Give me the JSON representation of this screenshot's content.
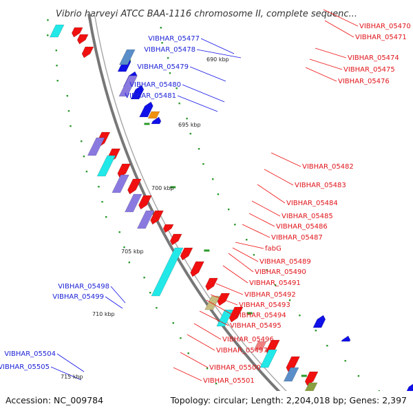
{
  "title": "Vibrio harveyi ATCC BAA-1116 chromosome II, complete sequenc...",
  "footer": {
    "accession": "Accession: NC_009784",
    "summary": "Topology: circular; Length: 2,204,018 bp; Genes: 2,397"
  },
  "ticks": [
    {
      "label": "690 kbp"
    },
    {
      "label": "695 kbp"
    },
    {
      "label": "700 kbp"
    },
    {
      "label": "705 kbp"
    },
    {
      "label": "710 kbp"
    },
    {
      "label": "715 kbp"
    }
  ],
  "reverse_strand_genes": [
    {
      "label": "VIBHAR_05477"
    },
    {
      "label": "VIBHAR_05478"
    },
    {
      "label": "VIBHAR_05479"
    },
    {
      "label": "VIBHAR_05480"
    },
    {
      "label": "VIBHAR_05481"
    },
    {
      "label": "VIBHAR_05498"
    },
    {
      "label": "VIBHAR_05499"
    },
    {
      "label": "VIBHAR_05504"
    },
    {
      "label": "VIBHAR_05505"
    }
  ],
  "forward_strand_genes": [
    {
      "label": "VIBHAR_05470"
    },
    {
      "label": "VIBHAR_05471"
    },
    {
      "label": "VIBHAR_05474"
    },
    {
      "label": "VIBHAR_05475"
    },
    {
      "label": "VIBHAR_05476"
    },
    {
      "label": "VIBHAR_05482"
    },
    {
      "label": "VIBHAR_05483"
    },
    {
      "label": "VIBHAR_05484"
    },
    {
      "label": "VIBHAR_05485"
    },
    {
      "label": "VIBHAR_05486"
    },
    {
      "label": "VIBHAR_05487"
    },
    {
      "label": "fabG"
    },
    {
      "label": "VIBHAR_05489"
    },
    {
      "label": "VIBHAR_05490"
    },
    {
      "label": "VIBHAR_05491"
    },
    {
      "label": "VIBHAR_05492"
    },
    {
      "label": "VIBHAR_05493"
    },
    {
      "label": "VIBHAR_05494"
    },
    {
      "label": "VIBHAR_05495"
    },
    {
      "label": "VIBHAR_05496"
    },
    {
      "label": "VIBHAR_05497"
    },
    {
      "label": "VIBHAR_05500"
    },
    {
      "label": "VIBHAR_05501"
    }
  ],
  "colors": {
    "cds_reverse": "#1010e8",
    "cds_forward": "#f01010",
    "feature_cyan": "#22e8e8",
    "feature_violet": "#8a7ae0",
    "feature_steel": "#5a8ec8",
    "feature_olive": "#8aa040",
    "feature_khaki": "#c8bc80",
    "feature_orange": "#f09010",
    "feature_pink": "#f08080",
    "backbone": "#777777",
    "gc_marks": "#2a9a2a"
  }
}
